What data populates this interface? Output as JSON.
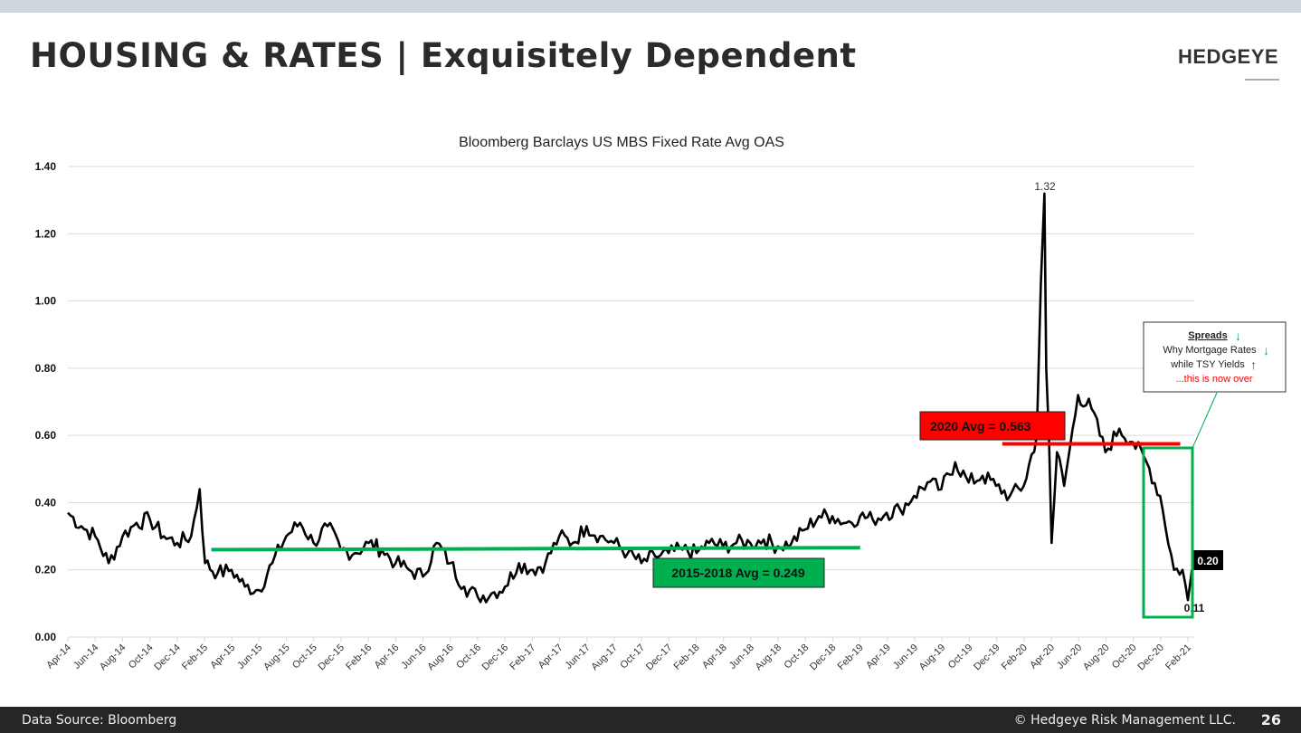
{
  "header": {
    "title": "HOUSING & RATES | Exquisitely Dependent",
    "logo": "HEDGEYE"
  },
  "footer": {
    "source": "Data Source: Bloomberg",
    "copyright": "© Hedgeye Risk Management LLC.",
    "page": "26"
  },
  "chart_data": {
    "type": "line",
    "title": "Bloomberg Barclays US MBS Fixed Rate Avg OAS",
    "xlabel": "",
    "ylabel": "",
    "ylim": [
      0,
      1.4
    ],
    "yticks": [
      "0.00",
      "0.20",
      "0.40",
      "0.60",
      "0.80",
      "1.00",
      "1.20",
      "1.40"
    ],
    "xticks": [
      "Apr-14",
      "Jun-14",
      "Aug-14",
      "Oct-14",
      "Dec-14",
      "Feb-15",
      "Apr-15",
      "Jun-15",
      "Aug-15",
      "Oct-15",
      "Dec-15",
      "Feb-16",
      "Apr-16",
      "Jun-16",
      "Aug-16",
      "Oct-16",
      "Dec-16",
      "Feb-17",
      "Apr-17",
      "Jun-17",
      "Aug-17",
      "Oct-17",
      "Dec-17",
      "Feb-18",
      "Apr-18",
      "Jun-18",
      "Aug-18",
      "Oct-18",
      "Dec-18",
      "Feb-19",
      "Apr-19",
      "Jun-19",
      "Aug-19",
      "Oct-19",
      "Dec-19",
      "Feb-20",
      "Apr-20",
      "Jun-20",
      "Aug-20",
      "Oct-20",
      "Dec-20",
      "Feb-21"
    ],
    "grid": true,
    "line_color": "#000000",
    "series": [
      {
        "x": [
          "2014-04-01",
          "2014-05-01",
          "2014-06-01",
          "2014-07-01",
          "2014-08-01",
          "2014-09-01",
          "2014-10-01",
          "2014-11-01",
          "2014-12-01",
          "2015-01-01",
          "2015-01-20",
          "2015-02-01",
          "2015-03-01",
          "2015-04-01",
          "2015-05-01",
          "2015-06-01",
          "2015-07-01",
          "2015-08-01",
          "2015-09-01",
          "2015-10-01",
          "2015-11-01",
          "2015-12-01",
          "2016-01-01",
          "2016-02-01",
          "2016-03-01",
          "2016-04-01",
          "2016-05-01",
          "2016-06-01",
          "2016-07-01",
          "2016-08-01",
          "2016-09-01",
          "2016-10-01",
          "2016-11-01",
          "2016-12-01",
          "2017-01-01",
          "2017-02-01",
          "2017-03-01",
          "2017-04-01",
          "2017-05-01",
          "2017-06-01",
          "2017-07-01",
          "2017-08-01",
          "2017-09-01",
          "2017-10-01",
          "2017-11-01",
          "2017-12-01",
          "2018-01-01",
          "2018-02-01",
          "2018-03-01",
          "2018-04-01",
          "2018-05-01",
          "2018-06-01",
          "2018-07-01",
          "2018-08-01",
          "2018-09-01",
          "2018-10-01",
          "2018-11-01",
          "2018-12-01",
          "2019-01-01",
          "2019-02-01",
          "2019-03-01",
          "2019-04-01",
          "2019-05-01",
          "2019-06-01",
          "2019-07-01",
          "2019-08-01",
          "2019-09-01",
          "2019-10-01",
          "2019-11-01",
          "2019-12-01",
          "2020-01-01",
          "2020-02-01",
          "2020-03-01",
          "2020-03-10",
          "2020-03-18",
          "2020-03-22",
          "2020-03-28",
          "2020-04-03",
          "2020-04-15",
          "2020-05-01",
          "2020-06-01",
          "2020-07-01",
          "2020-08-01",
          "2020-09-01",
          "2020-10-01",
          "2020-11-01",
          "2020-12-01",
          "2021-01-01",
          "2021-01-20",
          "2021-02-01",
          "2021-02-10"
        ],
        "values": [
          0.37,
          0.33,
          0.3,
          0.22,
          0.3,
          0.34,
          0.35,
          0.3,
          0.28,
          0.3,
          0.44,
          0.22,
          0.19,
          0.2,
          0.15,
          0.14,
          0.22,
          0.3,
          0.34,
          0.28,
          0.33,
          0.26,
          0.25,
          0.28,
          0.26,
          0.22,
          0.2,
          0.18,
          0.28,
          0.22,
          0.15,
          0.12,
          0.13,
          0.15,
          0.22,
          0.2,
          0.22,
          0.3,
          0.28,
          0.33,
          0.3,
          0.28,
          0.25,
          0.22,
          0.24,
          0.25,
          0.26,
          0.25,
          0.28,
          0.27,
          0.28,
          0.28,
          0.29,
          0.27,
          0.28,
          0.32,
          0.36,
          0.36,
          0.34,
          0.36,
          0.35,
          0.37,
          0.38,
          0.42,
          0.46,
          0.44,
          0.52,
          0.46,
          0.48,
          0.45,
          0.42,
          0.45,
          0.6,
          1.05,
          1.32,
          0.8,
          0.6,
          0.28,
          0.55,
          0.45,
          0.72,
          0.68,
          0.55,
          0.62,
          0.58,
          0.52,
          0.42,
          0.2,
          0.2,
          0.11,
          0.2
        ]
      }
    ],
    "annotations": {
      "peak_label": "1.32",
      "last_label": "0.20",
      "min_label": "0.11",
      "avg_2020": {
        "label": "2020 Avg = 0.563",
        "value": 0.563,
        "from": "2019-12-15",
        "to": "2021-01-15",
        "color": "#ff0000"
      },
      "avg_2015_2018": {
        "label": "2015-2018 Avg = 0.249",
        "value": 0.249,
        "from": "2015-02-15",
        "to": "2019-02-01",
        "color": "#00b050"
      },
      "callout": {
        "line1": "Spreads",
        "line2": "Why Mortgage Rates",
        "line3": "while TSY Yields",
        "line4": "...this is now over",
        "down_color": "#00b050",
        "up_color": "#ff0000"
      }
    }
  }
}
